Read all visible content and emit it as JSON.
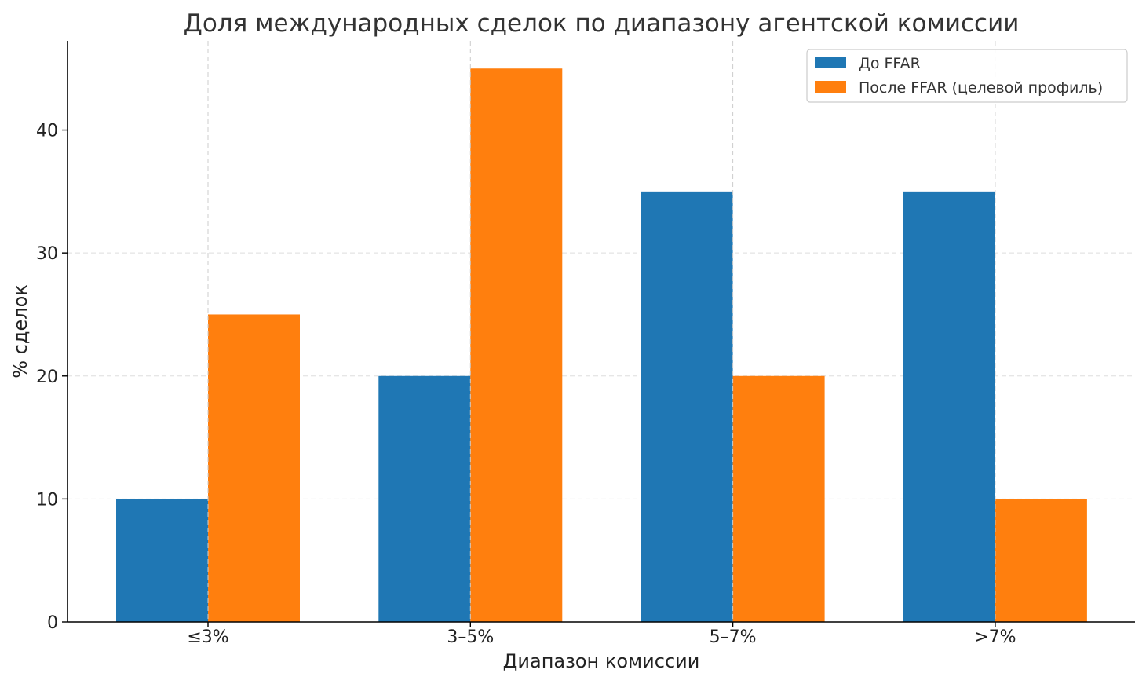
{
  "chart_data": {
    "type": "bar",
    "title": "Доля международных сделок по диапазону агентской комиссии",
    "xlabel": "Диапазон комиссии",
    "ylabel": "% сделок",
    "categories": [
      "≤3%",
      "3–5%",
      "5–7%",
      ">7%"
    ],
    "series": [
      {
        "name": "До FFAR",
        "values": [
          10,
          20,
          35,
          35
        ],
        "color": "#1f77b4"
      },
      {
        "name": "После FFAR (целевой профиль)",
        "values": [
          25,
          45,
          20,
          10
        ],
        "color": "#ff7f0e"
      }
    ],
    "ylim": [
      0,
      47.25
    ],
    "yticks": [
      0,
      10,
      20,
      30,
      40
    ],
    "grid": true,
    "legend": "top-right"
  }
}
